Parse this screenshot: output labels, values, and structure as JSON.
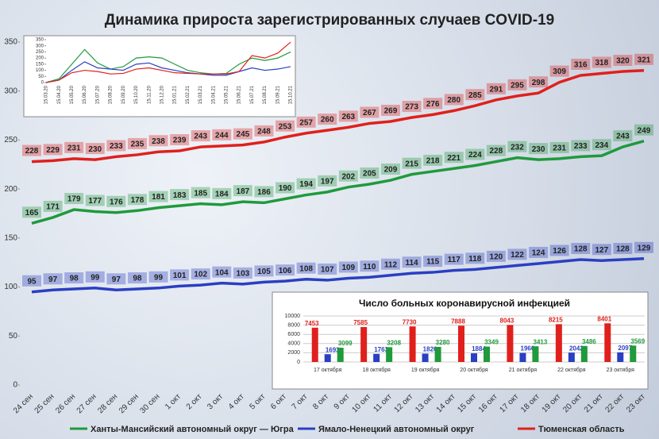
{
  "chart_data": [
    {
      "type": "line",
      "title": "Динамика прироста зарегистрированных случаев COVID-19",
      "categories": [
        "24 сен",
        "25 сен",
        "26 сен",
        "27 сен",
        "28 сен",
        "29 сен",
        "30 сен",
        "1 окт",
        "2 окт",
        "3 окт",
        "4 окт",
        "5 окт",
        "6 окт",
        "7 окт",
        "8 окт",
        "9 окт",
        "10 окт",
        "11 окт",
        "12 окт",
        "13 окт",
        "14 окт",
        "15 окт",
        "16 окт",
        "17 окт",
        "18 окт",
        "19 окт",
        "20 окт",
        "21 окт",
        "22 окт",
        "23 окт"
      ],
      "series": [
        {
          "name": "Ханты-Мансийский автономный округ — Югра",
          "color": "#1f9a3c",
          "values": [
            165,
            171,
            179,
            177,
            176,
            178,
            181,
            183,
            185,
            184,
            187,
            186,
            190,
            194,
            197,
            202,
            205,
            209,
            215,
            218,
            221,
            224,
            228,
            232,
            230,
            231,
            233,
            234,
            243,
            249
          ]
        },
        {
          "name": "Ямало-Ненецкий автономный округ",
          "color": "#2a3fc2",
          "values": [
            95,
            97,
            98,
            99,
            97,
            98,
            99,
            101,
            102,
            104,
            103,
            105,
            106,
            108,
            107,
            109,
            110,
            112,
            114,
            115,
            117,
            118,
            120,
            122,
            124,
            126,
            128,
            127,
            128,
            129
          ]
        },
        {
          "name": "Тюменская область",
          "color": "#e0201c",
          "values": [
            228,
            229,
            231,
            230,
            233,
            235,
            238,
            239,
            243,
            244,
            245,
            248,
            253,
            257,
            260,
            263,
            267,
            269,
            273,
            276,
            280,
            285,
            291,
            295,
            298,
            309,
            316,
            318,
            320,
            321
          ]
        }
      ],
      "ylim": [
        0,
        350
      ],
      "yticks": [
        0,
        50,
        100,
        150,
        200,
        250,
        300,
        350
      ],
      "legend": "bottom"
    },
    {
      "type": "line",
      "categories": [
        "15.03.20",
        "15.04.20",
        "15.05.20",
        "15.06.20",
        "15.07.20",
        "15.08.20",
        "15.09.20",
        "15.10.20",
        "15.11.20",
        "15.12.20",
        "15.01.21",
        "15.02.21",
        "15.03.21",
        "15.04.21",
        "15.05.21",
        "15.06.21",
        "15.07.21",
        "15.08.21",
        "15.09.21",
        "15.10.21"
      ],
      "series": [
        {
          "color": "#1f9a3c",
          "values": [
            0,
            30,
            150,
            270,
            160,
            110,
            130,
            200,
            210,
            200,
            150,
            100,
            80,
            70,
            75,
            150,
            200,
            180,
            200,
            250
          ]
        },
        {
          "color": "#2a3fc2",
          "values": [
            0,
            20,
            100,
            170,
            120,
            110,
            100,
            150,
            160,
            120,
            100,
            80,
            70,
            60,
            60,
            90,
            120,
            100,
            110,
            130
          ]
        },
        {
          "color": "#e0201c",
          "values": [
            0,
            20,
            80,
            100,
            90,
            70,
            75,
            110,
            120,
            100,
            80,
            75,
            70,
            70,
            70,
            90,
            220,
            200,
            240,
            330
          ]
        }
      ],
      "ylim": [
        0,
        350
      ],
      "yticks": [
        0,
        50,
        100,
        150,
        200,
        250,
        300,
        350
      ]
    },
    {
      "type": "bar",
      "title": "Число больных коронавирусной инфекцией",
      "categories": [
        "17 октября",
        "18 октября",
        "19 октября",
        "20 октября",
        "21 октября",
        "22 октября",
        "23 октября"
      ],
      "series": [
        {
          "color": "#e0201c",
          "values": [
            7453,
            7585,
            7730,
            7888,
            8043,
            8215,
            8401
          ]
        },
        {
          "color": "#2a3fc2",
          "values": [
            1693,
            1763,
            1820,
            1884,
            1966,
            2042,
            2097
          ]
        },
        {
          "color": "#1f9a3c",
          "values": [
            3099,
            3208,
            3280,
            3349,
            3413,
            3486,
            3569
          ]
        }
      ],
      "ylim": [
        0,
        10000
      ],
      "yticks": [
        0,
        2000,
        4000,
        6000,
        8000,
        10000
      ]
    }
  ]
}
